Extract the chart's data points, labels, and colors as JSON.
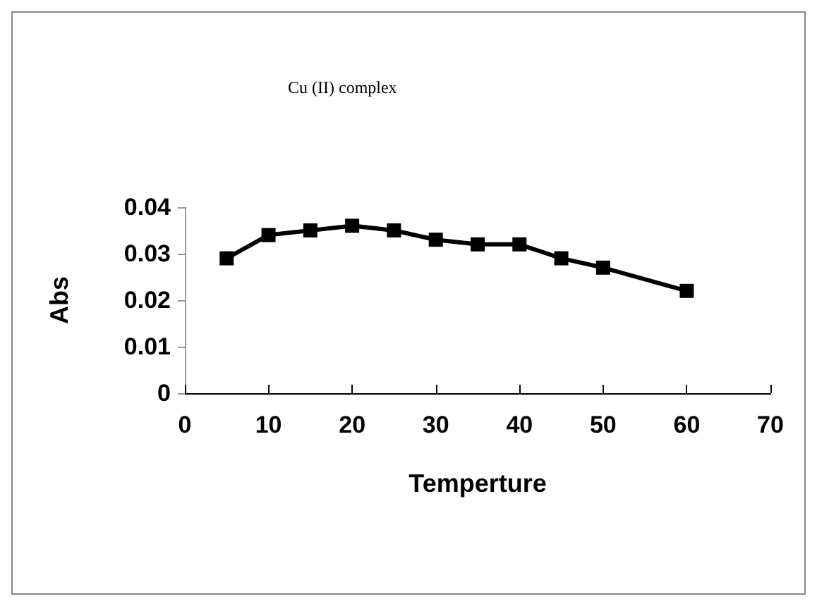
{
  "chart_data": {
    "type": "line",
    "title": "Cu (II) complex",
    "xlabel": "Temperture",
    "ylabel": "Abs",
    "x": [
      5,
      10,
      15,
      20,
      25,
      30,
      35,
      40,
      45,
      50,
      60
    ],
    "series": [
      {
        "color": "#000000",
        "values": [
          0.029,
          0.034,
          0.035,
          0.036,
          0.035,
          0.033,
          0.032,
          0.032,
          0.029,
          0.027,
          0.022
        ]
      }
    ],
    "xlim": [
      0,
      70
    ],
    "xticks": [
      0,
      10,
      20,
      30,
      40,
      50,
      60,
      70
    ],
    "ylim": [
      0,
      0.04
    ],
    "yticks": [
      0,
      0.01,
      0.02,
      0.03,
      0.04
    ],
    "grid": false,
    "marker": "square",
    "line_style": "solid"
  }
}
